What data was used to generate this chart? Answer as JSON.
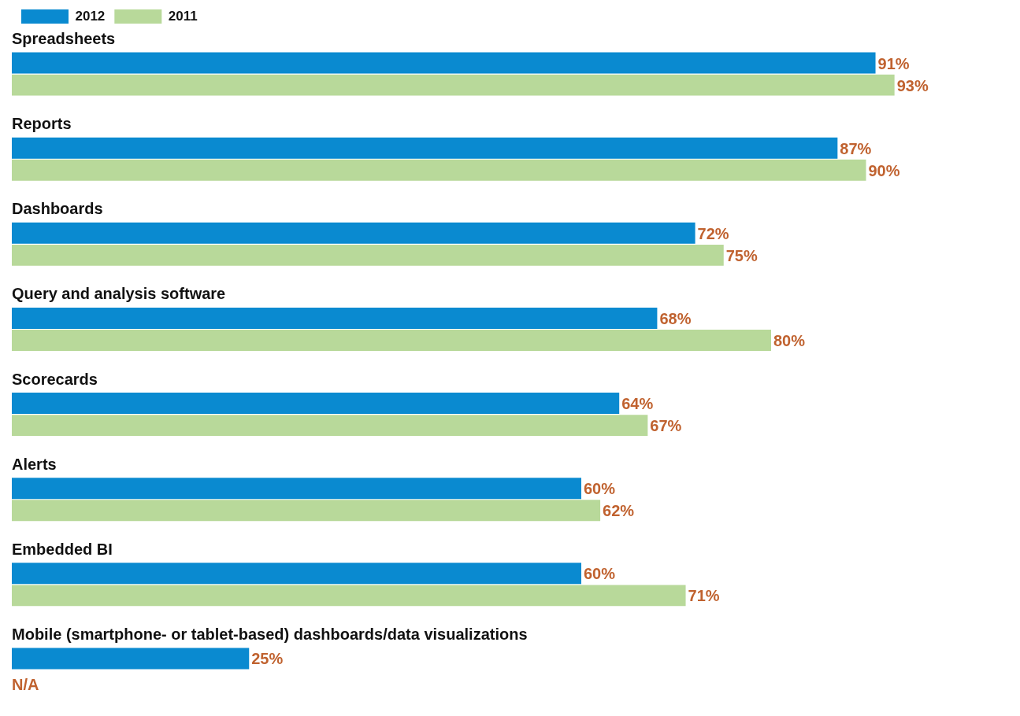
{
  "chart_data": {
    "type": "bar",
    "orientation": "horizontal",
    "legend": "top left",
    "categories": [
      "Spreadsheets",
      "Reports",
      "Dashboards",
      "Query and analysis software",
      "Scorecards",
      "Alerts",
      "Embedded BI",
      "Mobile (smartphone- or tablet-based) dashboards/data visualizations"
    ],
    "series": [
      {
        "name": "2012",
        "color": "#0a8ad0",
        "values": [
          91,
          87,
          72,
          68,
          64,
          60,
          60,
          25
        ],
        "value_labels": [
          "91%",
          "87%",
          "72%",
          "68%",
          "64%",
          "60%",
          "60%",
          "25%"
        ]
      },
      {
        "name": "2011",
        "color": "#b8d99a",
        "values": [
          93,
          90,
          75,
          80,
          67,
          62,
          71,
          null
        ],
        "value_labels": [
          "93%",
          "90%",
          "75%",
          "80%",
          "67%",
          "62%",
          "71%",
          "N/A"
        ]
      }
    ]
  }
}
